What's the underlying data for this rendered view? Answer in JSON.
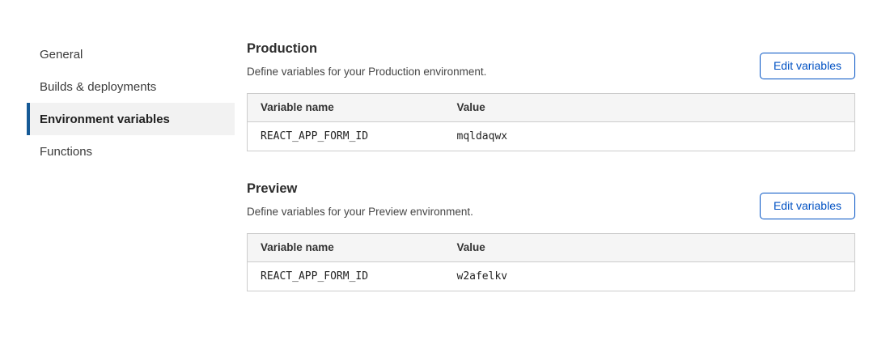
{
  "sidebar": {
    "items": [
      {
        "label": "General",
        "active": false
      },
      {
        "label": "Builds & deployments",
        "active": false
      },
      {
        "label": "Environment variables",
        "active": true
      },
      {
        "label": "Functions",
        "active": false
      }
    ]
  },
  "sections": [
    {
      "title": "Production",
      "description": "Define variables for your Production environment.",
      "button_label": "Edit variables",
      "table": {
        "headers": [
          "Variable name",
          "Value"
        ],
        "rows": [
          {
            "name": "REACT_APP_FORM_ID",
            "value": "mqldaqwx"
          }
        ]
      }
    },
    {
      "title": "Preview",
      "description": "Define variables for your Preview environment.",
      "button_label": "Edit variables",
      "table": {
        "headers": [
          "Variable name",
          "Value"
        ],
        "rows": [
          {
            "name": "REACT_APP_FORM_ID",
            "value": "w2afelkv"
          }
        ]
      }
    }
  ],
  "colors": {
    "accent_blue": "#0051c3",
    "nav_active_border": "#165a96",
    "nav_active_bg": "#f2f2f2",
    "table_header_bg": "#f5f5f5",
    "table_border": "#cccccc"
  }
}
